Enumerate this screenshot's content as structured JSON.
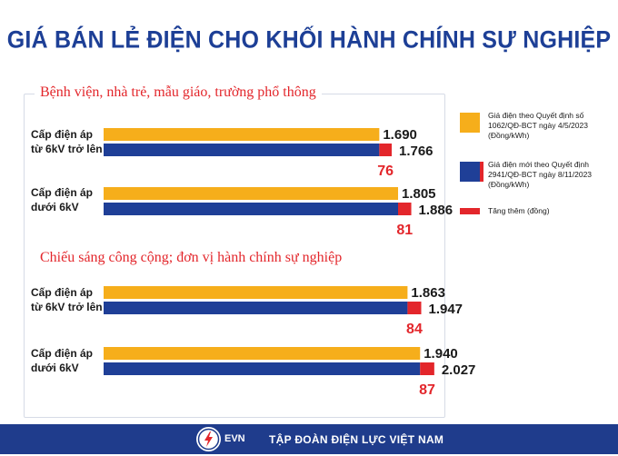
{
  "title": "GIÁ BÁN LẺ ĐIỆN CHO KHỐI HÀNH CHÍNH SỰ NGHIỆP",
  "colors": {
    "old": "#f6ae1b",
    "new": "#1f3f97",
    "increase": "#e3262b",
    "footer": "#1f3c8c"
  },
  "legend": {
    "old": "Giá điện theo Quyết định số 1062/QĐ-BCT ngày 4/5/2023 (Đồng/kWh)",
    "new": "Giá điện mới theo Quyết định 2941/QĐ-BCT ngày 8/11/2023 (Đồng/kWh)",
    "increase": "Tăng thêm (đồng)"
  },
  "footer": {
    "logo": "EVN",
    "org": "TẬP ĐOÀN ĐIỆN LỰC VIỆT NAM"
  },
  "chart_data": {
    "type": "bar",
    "orientation": "horizontal",
    "unit": "Đồng/kWh",
    "series_names": {
      "old": "Giá điện theo Quyết định số 1062/QĐ-BCT ngày 4/5/2023 (Đồng/kWh)",
      "new": "Giá điện mới theo Quyết định 2941/QĐ-BCT ngày 8/11/2023 (Đồng/kWh)",
      "increase": "Tăng thêm (đồng)"
    },
    "groups": [
      {
        "title": "Bệnh viện, nhà trẻ, mẫu giáo, trường phổ thông",
        "rows": [
          {
            "label": [
              "Cấp điện áp",
              "từ 6kV trở lên"
            ],
            "old": 1690,
            "new": 1766,
            "increase": 76,
            "old_label": "1.690",
            "new_label": "1.766",
            "increase_label": "76"
          },
          {
            "label": [
              "Cấp điện áp",
              "dưới 6kV"
            ],
            "old": 1805,
            "new": 1886,
            "increase": 81,
            "old_label": "1.805",
            "new_label": "1.886",
            "increase_label": "81"
          }
        ]
      },
      {
        "title": "Chiếu sáng công cộng; đơn vị hành chính sự nghiệp",
        "rows": [
          {
            "label": [
              "Cấp điện áp",
              "từ 6kV trở lên"
            ],
            "old": 1863,
            "new": 1947,
            "increase": 84,
            "old_label": "1.863",
            "new_label": "1.947",
            "increase_label": "84"
          },
          {
            "label": [
              "Cấp điện áp",
              "dưới 6kV"
            ],
            "old": 1940,
            "new": 2027,
            "increase": 87,
            "old_label": "1.940",
            "new_label": "2.027",
            "increase_label": "87"
          }
        ]
      }
    ]
  }
}
